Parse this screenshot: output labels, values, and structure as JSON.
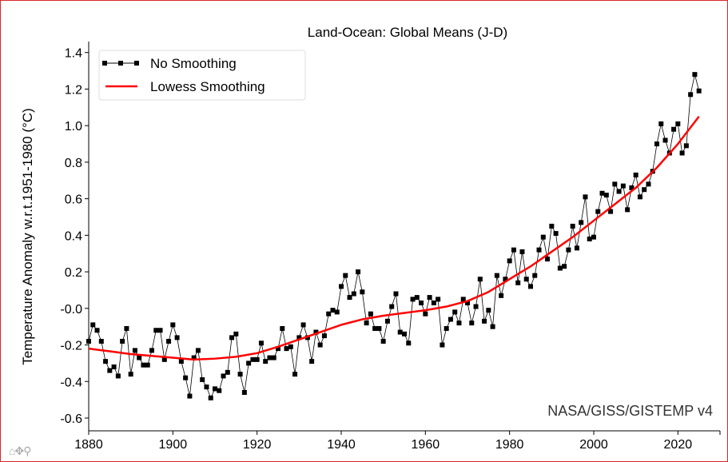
{
  "chart_data": {
    "type": "line",
    "title": "Land-Ocean: Global Means (J-D)",
    "xlabel": "",
    "ylabel": "Temperature Anomaly w.r.t.1951-1980 (°C)",
    "xlim": [
      1880,
      2030
    ],
    "ylim": [
      -0.67,
      1.46
    ],
    "xticks": [
      "1880",
      "1900",
      "1920",
      "1940",
      "1960",
      "1980",
      "2000",
      "2020"
    ],
    "yticks": [
      "1.4",
      "1.2",
      "1.0",
      "0.8",
      "0.6",
      "0.4",
      "0.2",
      "-0.0",
      "-0.2",
      "-0.4",
      "-0.6"
    ],
    "grid": false,
    "legend_position": "top-left",
    "annotation": "NASA/GISS/GISTEMP v4",
    "series": [
      {
        "name": "No Smoothing",
        "color": "#000000",
        "marker": "square",
        "x_start": 1880,
        "values": [
          -0.18,
          -0.09,
          -0.12,
          -0.18,
          -0.29,
          -0.34,
          -0.32,
          -0.37,
          -0.18,
          -0.11,
          -0.36,
          -0.23,
          -0.27,
          -0.31,
          -0.31,
          -0.23,
          -0.12,
          -0.12,
          -0.28,
          -0.18,
          -0.09,
          -0.16,
          -0.29,
          -0.38,
          -0.48,
          -0.27,
          -0.23,
          -0.39,
          -0.43,
          -0.49,
          -0.44,
          -0.45,
          -0.37,
          -0.35,
          -0.16,
          -0.14,
          -0.36,
          -0.46,
          -0.3,
          -0.28,
          -0.28,
          -0.19,
          -0.29,
          -0.27,
          -0.27,
          -0.22,
          -0.11,
          -0.22,
          -0.21,
          -0.36,
          -0.16,
          -0.09,
          -0.16,
          -0.29,
          -0.13,
          -0.2,
          -0.15,
          -0.03,
          -0.01,
          -0.02,
          0.12,
          0.18,
          0.06,
          0.08,
          0.2,
          0.09,
          -0.08,
          -0.03,
          -0.11,
          -0.11,
          -0.18,
          -0.07,
          0.01,
          0.08,
          -0.13,
          -0.14,
          -0.19,
          0.05,
          0.06,
          0.03,
          -0.03,
          0.06,
          0.03,
          0.05,
          -0.2,
          -0.11,
          -0.06,
          -0.02,
          -0.08,
          0.05,
          0.03,
          -0.08,
          0.01,
          0.16,
          -0.07,
          -0.01,
          -0.1,
          0.18,
          0.07,
          0.16,
          0.26,
          0.32,
          0.14,
          0.31,
          0.16,
          0.12,
          0.18,
          0.32,
          0.39,
          0.27,
          0.45,
          0.41,
          0.22,
          0.23,
          0.32,
          0.45,
          0.33,
          0.47,
          0.61,
          0.38,
          0.39,
          0.53,
          0.63,
          0.62,
          0.53,
          0.68,
          0.64,
          0.67,
          0.54,
          0.66,
          0.73,
          0.61,
          0.65,
          0.68,
          0.75,
          0.9,
          1.01,
          0.92,
          0.85,
          0.98,
          1.01,
          0.85,
          0.89,
          1.17,
          1.28,
          1.19
        ]
      },
      {
        "name": "Lowess Smoothing",
        "color": "#ff0000",
        "x": [
          1880,
          1885,
          1890,
          1895,
          1900,
          1905,
          1910,
          1915,
          1920,
          1925,
          1930,
          1935,
          1940,
          1945,
          1950,
          1955,
          1960,
          1965,
          1970,
          1975,
          1980,
          1985,
          1990,
          1995,
          2000,
          2005,
          2010,
          2015,
          2020,
          2025
        ],
        "values": [
          -0.22,
          -0.235,
          -0.25,
          -0.26,
          -0.27,
          -0.28,
          -0.275,
          -0.265,
          -0.245,
          -0.21,
          -0.17,
          -0.13,
          -0.09,
          -0.06,
          -0.04,
          -0.025,
          -0.01,
          0.01,
          0.04,
          0.09,
          0.16,
          0.23,
          0.31,
          0.39,
          0.48,
          0.57,
          0.66,
          0.77,
          0.9,
          1.05
        ]
      }
    ]
  },
  "toolbar": {
    "icons": [
      "home-icon",
      "pan-icon",
      "zoom-icon"
    ]
  }
}
